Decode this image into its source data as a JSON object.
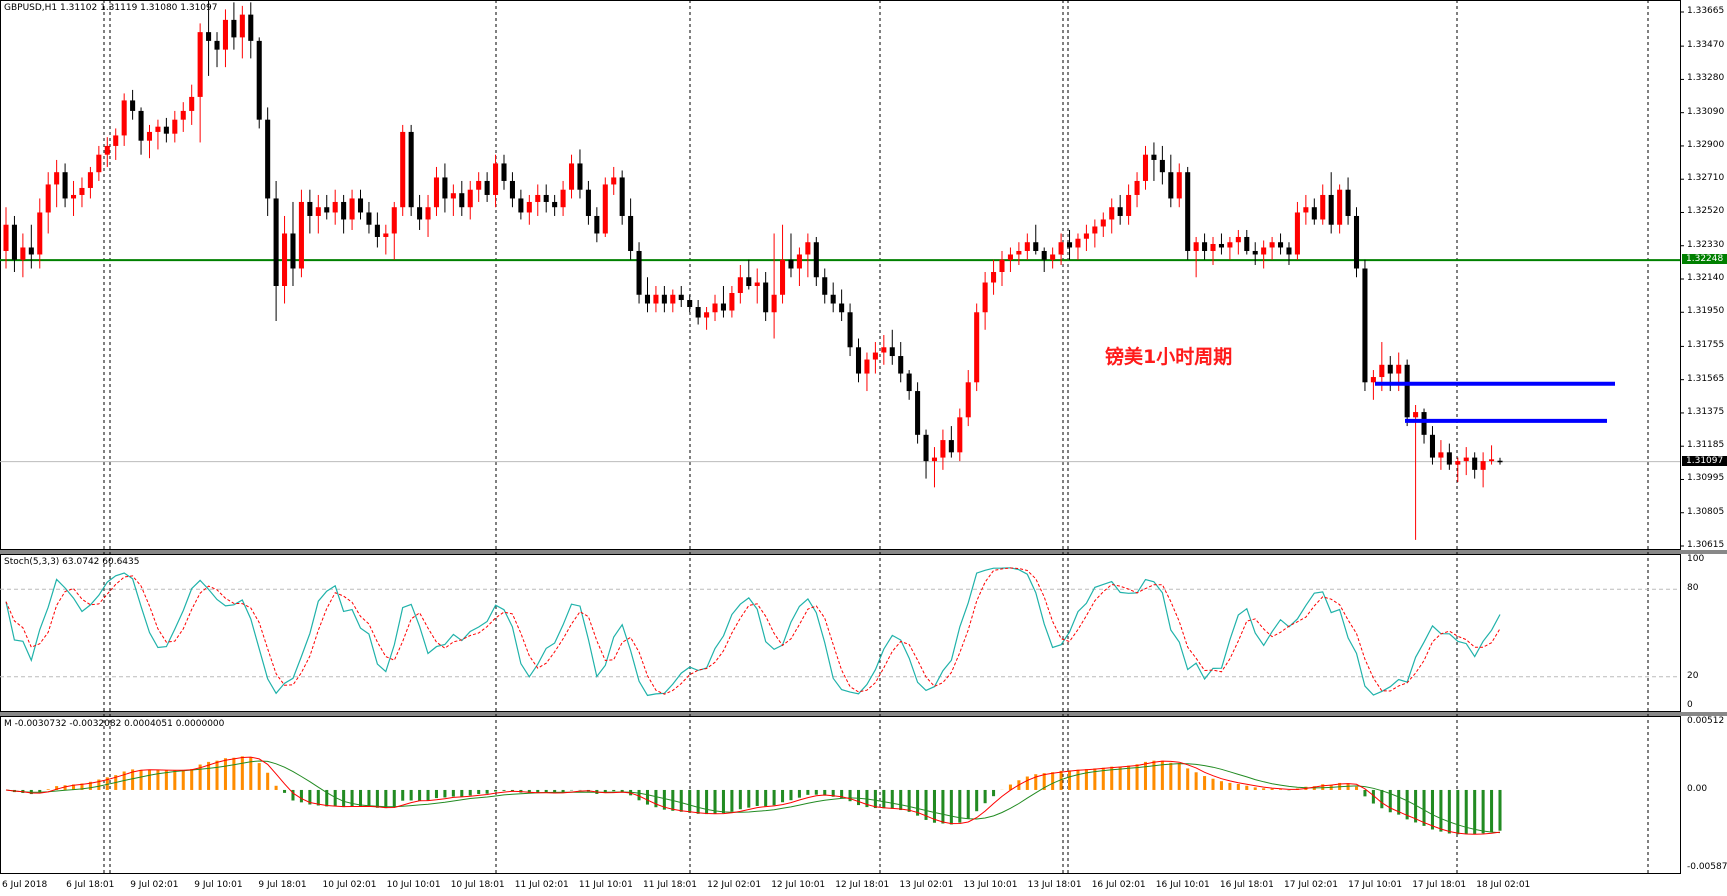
{
  "colors": {
    "bull": "#ff0000",
    "bear": "#000000",
    "level": "#008000",
    "blue_line": "#0000ff",
    "stoch_main": "#20b2aa",
    "stoch_signal": "#ff0000",
    "macd_pos": "#ff8c00",
    "macd_neg": "#228b22",
    "macd_signal_line": "#228b22",
    "macd_main_line": "#ff0000",
    "cursor_tag": "#000000",
    "level_tag": "#008000"
  },
  "header": {
    "title": "GBPUSD,H1  1.31102 1.31119 1.31080 1.31097"
  },
  "annotation": {
    "text": "镑美1小时周期"
  },
  "price_axis": {
    "ticks": [
      "1.33665",
      "1.33470",
      "1.33280",
      "1.33090",
      "1.32900",
      "1.32710",
      "1.32520",
      "1.32330",
      "1.32140",
      "1.31950",
      "1.31755",
      "1.31565",
      "1.31375",
      "1.31185",
      "1.30995",
      "1.30805",
      "1.30615"
    ],
    "level_tag": "1.32248",
    "current_tag": "1.31097"
  },
  "stoch": {
    "title": "Stoch(5,3,3) 63.0742 60.6435",
    "ticks": [
      "100",
      "80",
      "20",
      "0"
    ]
  },
  "macd": {
    "title": "M -0.0030732 -0.0032082 0.0004051 0.0000000",
    "ticks": [
      "0.00512",
      "0.00",
      "-0.005879"
    ]
  },
  "time_axis": {
    "labels": [
      "6 Jul 2018",
      "6 Jul 18:01",
      "9 Jul 02:01",
      "9 Jul 10:01",
      "9 Jul 18:01",
      "10 Jul 02:01",
      "10 Jul 10:01",
      "10 Jul 18:01",
      "11 Jul 02:01",
      "11 Jul 10:01",
      "11 Jul 18:01",
      "12 Jul 02:01",
      "12 Jul 10:01",
      "12 Jul 18:01",
      "13 Jul 02:01",
      "13 Jul 10:01",
      "13 Jul 18:01",
      "16 Jul 02:01",
      "16 Jul 10:01",
      "16 Jul 18:01",
      "17 Jul 02:01",
      "17 Jul 10:01",
      "17 Jul 18:01",
      "18 Jul 02:01"
    ]
  },
  "chart_data": {
    "type": "candlestick",
    "symbol": "GBPUSD",
    "timeframe": "H1",
    "ylim": [
      1.30615,
      1.33665
    ],
    "support_level": 1.32248,
    "current_price": 1.31097,
    "blue_levels": [
      1.31542,
      1.3133
    ],
    "candles": [
      [
        1.323,
        1.3255,
        1.322,
        1.3245
      ],
      [
        1.3245,
        1.325,
        1.3218,
        1.3225
      ],
      [
        1.3225,
        1.324,
        1.3215,
        1.3232
      ],
      [
        1.3232,
        1.3245,
        1.322,
        1.3228
      ],
      [
        1.3228,
        1.326,
        1.322,
        1.3252
      ],
      [
        1.3252,
        1.3275,
        1.324,
        1.3268
      ],
      [
        1.3268,
        1.3282,
        1.3255,
        1.3275
      ],
      [
        1.3275,
        1.328,
        1.3255,
        1.326
      ],
      [
        1.326,
        1.327,
        1.325,
        1.3262
      ],
      [
        1.3262,
        1.3272,
        1.3255,
        1.3266
      ],
      [
        1.3266,
        1.3278,
        1.326,
        1.3275
      ],
      [
        1.3275,
        1.329,
        1.327,
        1.3285
      ],
      [
        1.3285,
        1.3295,
        1.3278,
        1.329
      ],
      [
        1.329,
        1.33,
        1.3282,
        1.3296
      ],
      [
        1.3296,
        1.332,
        1.329,
        1.3316
      ],
      [
        1.3316,
        1.3322,
        1.3305,
        1.331
      ],
      [
        1.331,
        1.3312,
        1.3285,
        1.3293
      ],
      [
        1.3293,
        1.3302,
        1.3283,
        1.3298
      ],
      [
        1.3298,
        1.3305,
        1.3288,
        1.3301
      ],
      [
        1.3301,
        1.3306,
        1.3292,
        1.3297
      ],
      [
        1.3297,
        1.331,
        1.3292,
        1.3305
      ],
      [
        1.3305,
        1.3315,
        1.3298,
        1.331
      ],
      [
        1.331,
        1.3325,
        1.3302,
        1.3318
      ],
      [
        1.3318,
        1.336,
        1.3292,
        1.3355
      ],
      [
        1.3355,
        1.338,
        1.333,
        1.335
      ],
      [
        1.335,
        1.3355,
        1.3335,
        1.3345
      ],
      [
        1.3345,
        1.3368,
        1.3335,
        1.3362
      ],
      [
        1.3362,
        1.3372,
        1.3345,
        1.3352
      ],
      [
        1.3352,
        1.337,
        1.334,
        1.3365
      ],
      [
        1.3365,
        1.3372,
        1.334,
        1.335
      ],
      [
        1.335,
        1.3352,
        1.33,
        1.3305
      ],
      [
        1.3305,
        1.3312,
        1.325,
        1.326
      ],
      [
        1.326,
        1.327,
        1.319,
        1.321
      ],
      [
        1.321,
        1.325,
        1.32,
        1.324
      ],
      [
        1.324,
        1.3258,
        1.321,
        1.322
      ],
      [
        1.322,
        1.3265,
        1.3215,
        1.3258
      ],
      [
        1.3258,
        1.3265,
        1.324,
        1.325
      ],
      [
        1.325,
        1.3262,
        1.324,
        1.3255
      ],
      [
        1.3255,
        1.3262,
        1.3248,
        1.3252
      ],
      [
        1.3252,
        1.3265,
        1.3245,
        1.3258
      ],
      [
        1.3258,
        1.3262,
        1.324,
        1.3248
      ],
      [
        1.3248,
        1.3265,
        1.3242,
        1.326
      ],
      [
        1.326,
        1.3265,
        1.3248,
        1.3252
      ],
      [
        1.3252,
        1.3258,
        1.324,
        1.3245
      ],
      [
        1.3245,
        1.3252,
        1.3232,
        1.3238
      ],
      [
        1.3238,
        1.3245,
        1.3228,
        1.324
      ],
      [
        1.324,
        1.3258,
        1.3225,
        1.3255
      ],
      [
        1.3255,
        1.3302,
        1.325,
        1.3298
      ],
      [
        1.3298,
        1.3302,
        1.325,
        1.3255
      ],
      [
        1.3255,
        1.3262,
        1.3242,
        1.3248
      ],
      [
        1.3248,
        1.3262,
        1.3238,
        1.3255
      ],
      [
        1.3255,
        1.3278,
        1.325,
        1.3272
      ],
      [
        1.3272,
        1.328,
        1.3252,
        1.326
      ],
      [
        1.326,
        1.3268,
        1.325,
        1.3263
      ],
      [
        1.3263,
        1.327,
        1.325,
        1.3255
      ],
      [
        1.3255,
        1.327,
        1.3248,
        1.3265
      ],
      [
        1.3265,
        1.3275,
        1.3258,
        1.327
      ],
      [
        1.327,
        1.3275,
        1.3258,
        1.3262
      ],
      [
        1.3262,
        1.3285,
        1.3255,
        1.328
      ],
      [
        1.328,
        1.3285,
        1.3265,
        1.327
      ],
      [
        1.327,
        1.3275,
        1.3255,
        1.326
      ],
      [
        1.326,
        1.3265,
        1.3248,
        1.3252
      ],
      [
        1.3252,
        1.3262,
        1.3245,
        1.3258
      ],
      [
        1.3258,
        1.3268,
        1.325,
        1.3262
      ],
      [
        1.3262,
        1.3268,
        1.3252,
        1.3258
      ],
      [
        1.3258,
        1.3262,
        1.325,
        1.3255
      ],
      [
        1.3255,
        1.327,
        1.325,
        1.3265
      ],
      [
        1.3265,
        1.3285,
        1.326,
        1.328
      ],
      [
        1.328,
        1.3288,
        1.326,
        1.3265
      ],
      [
        1.3265,
        1.327,
        1.3245,
        1.325
      ],
      [
        1.325,
        1.3255,
        1.3235,
        1.324
      ],
      [
        1.324,
        1.3272,
        1.3238,
        1.3268
      ],
      [
        1.3268,
        1.3278,
        1.3262,
        1.3272
      ],
      [
        1.3272,
        1.3276,
        1.3245,
        1.325
      ],
      [
        1.325,
        1.326,
        1.3225,
        1.323
      ],
      [
        1.323,
        1.3235,
        1.32,
        1.3205
      ],
      [
        1.3205,
        1.3215,
        1.3195,
        1.32
      ],
      [
        1.32,
        1.321,
        1.3195,
        1.3205
      ],
      [
        1.3205,
        1.321,
        1.3195,
        1.32
      ],
      [
        1.32,
        1.3208,
        1.3195,
        1.3205
      ],
      [
        1.3205,
        1.321,
        1.3198,
        1.3202
      ],
      [
        1.3202,
        1.3205,
        1.3195,
        1.3198
      ],
      [
        1.3198,
        1.3202,
        1.3188,
        1.3192
      ],
      [
        1.3192,
        1.3198,
        1.3185,
        1.3195
      ],
      [
        1.3195,
        1.3205,
        1.319,
        1.32
      ],
      [
        1.32,
        1.321,
        1.3192,
        1.3196
      ],
      [
        1.3196,
        1.321,
        1.3192,
        1.3206
      ],
      [
        1.3206,
        1.3222,
        1.32,
        1.3215
      ],
      [
        1.3215,
        1.3225,
        1.3208,
        1.321
      ],
      [
        1.321,
        1.322,
        1.32,
        1.3212
      ],
      [
        1.3212,
        1.3218,
        1.319,
        1.3195
      ],
      [
        1.3195,
        1.324,
        1.318,
        1.3205
      ],
      [
        1.3205,
        1.3245,
        1.32,
        1.3225
      ],
      [
        1.3225,
        1.324,
        1.3215,
        1.322
      ],
      [
        1.322,
        1.3232,
        1.321,
        1.3228
      ],
      [
        1.3228,
        1.324,
        1.3215,
        1.3235
      ],
      [
        1.3235,
        1.3238,
        1.321,
        1.3215
      ],
      [
        1.3215,
        1.322,
        1.32,
        1.3205
      ],
      [
        1.3205,
        1.3212,
        1.3195,
        1.32
      ],
      [
        1.32,
        1.3208,
        1.319,
        1.3195
      ],
      [
        1.3195,
        1.32,
        1.317,
        1.3175
      ],
      [
        1.3175,
        1.318,
        1.3155,
        1.316
      ],
      [
        1.316,
        1.3172,
        1.315,
        1.3168
      ],
      [
        1.3168,
        1.3178,
        1.316,
        1.3172
      ],
      [
        1.3172,
        1.3182,
        1.3165,
        1.3175
      ],
      [
        1.3175,
        1.3185,
        1.3165,
        1.317
      ],
      [
        1.317,
        1.3178,
        1.3155,
        1.316
      ],
      [
        1.316,
        1.3162,
        1.3145,
        1.315
      ],
      [
        1.315,
        1.3155,
        1.312,
        1.3125
      ],
      [
        1.3125,
        1.3128,
        1.31,
        1.311
      ],
      [
        1.311,
        1.3118,
        1.3095,
        1.3112
      ],
      [
        1.3112,
        1.3128,
        1.3105,
        1.3122
      ],
      [
        1.3122,
        1.313,
        1.3112,
        1.3115
      ],
      [
        1.3115,
        1.314,
        1.311,
        1.3135
      ],
      [
        1.3135,
        1.3162,
        1.313,
        1.3155
      ],
      [
        1.3155,
        1.32,
        1.315,
        1.3195
      ],
      [
        1.3195,
        1.3218,
        1.3185,
        1.3212
      ],
      [
        1.3212,
        1.3225,
        1.3205,
        1.3218
      ],
      [
        1.3218,
        1.323,
        1.321,
        1.3225
      ],
      [
        1.3225,
        1.3232,
        1.3218,
        1.3228
      ],
      [
        1.3228,
        1.3235,
        1.3222,
        1.323
      ],
      [
        1.323,
        1.324,
        1.3225,
        1.3235
      ],
      [
        1.3235,
        1.3245,
        1.3228,
        1.323
      ],
      [
        1.323,
        1.3232,
        1.3218,
        1.3225
      ],
      [
        1.3225,
        1.3232,
        1.322,
        1.3228
      ],
      [
        1.3228,
        1.324,
        1.3222,
        1.3235
      ],
      [
        1.3235,
        1.3242,
        1.3225,
        1.3232
      ],
      [
        1.3232,
        1.324,
        1.3225,
        1.3237
      ],
      [
        1.3237,
        1.3245,
        1.323,
        1.324
      ],
      [
        1.324,
        1.3248,
        1.3232,
        1.3244
      ],
      [
        1.3244,
        1.3252,
        1.3238,
        1.3248
      ],
      [
        1.3248,
        1.326,
        1.324,
        1.3255
      ],
      [
        1.3255,
        1.3262,
        1.3245,
        1.325
      ],
      [
        1.325,
        1.3268,
        1.3245,
        1.3262
      ],
      [
        1.3262,
        1.3275,
        1.3255,
        1.327
      ],
      [
        1.327,
        1.329,
        1.3265,
        1.3285
      ],
      [
        1.3285,
        1.3292,
        1.327,
        1.3282
      ],
      [
        1.3282,
        1.329,
        1.3268,
        1.3275
      ],
      [
        1.3275,
        1.3285,
        1.3255,
        1.326
      ],
      [
        1.326,
        1.328,
        1.3255,
        1.3275
      ],
      [
        1.3275,
        1.3278,
        1.3225,
        1.323
      ],
      [
        1.323,
        1.3238,
        1.3215,
        1.3235
      ],
      [
        1.3235,
        1.324,
        1.3225,
        1.323
      ],
      [
        1.323,
        1.3238,
        1.3222,
        1.3234
      ],
      [
        1.3234,
        1.324,
        1.3228,
        1.3232
      ],
      [
        1.3232,
        1.3238,
        1.3225,
        1.3235
      ],
      [
        1.3235,
        1.3242,
        1.3228,
        1.3238
      ],
      [
        1.3238,
        1.3242,
        1.3228,
        1.323
      ],
      [
        1.323,
        1.3235,
        1.3222,
        1.3228
      ],
      [
        1.3228,
        1.3236,
        1.322,
        1.3232
      ],
      [
        1.3232,
        1.3238,
        1.3225,
        1.3235
      ],
      [
        1.3235,
        1.324,
        1.3228,
        1.3232
      ],
      [
        1.3232,
        1.3235,
        1.3222,
        1.3228
      ],
      [
        1.3228,
        1.3258,
        1.3225,
        1.3252
      ],
      [
        1.3252,
        1.3262,
        1.3245,
        1.3255
      ],
      [
        1.3255,
        1.326,
        1.3245,
        1.3248
      ],
      [
        1.3248,
        1.3268,
        1.3245,
        1.3262
      ],
      [
        1.3262,
        1.3275,
        1.324,
        1.3245
      ],
      [
        1.3245,
        1.3268,
        1.324,
        1.3265
      ],
      [
        1.3265,
        1.3272,
        1.3245,
        1.325
      ],
      [
        1.325,
        1.3255,
        1.3215,
        1.322
      ],
      [
        1.322,
        1.3225,
        1.315,
        1.3155
      ],
      [
        1.3155,
        1.3162,
        1.3145,
        1.3158
      ],
      [
        1.3158,
        1.3178,
        1.315,
        1.3165
      ],
      [
        1.3165,
        1.317,
        1.315,
        1.316
      ],
      [
        1.316,
        1.3172,
        1.315,
        1.3165
      ],
      [
        1.3165,
        1.3168,
        1.313,
        1.3135
      ],
      [
        1.3135,
        1.3142,
        1.3065,
        1.3138
      ],
      [
        1.3138,
        1.314,
        1.312,
        1.3125
      ],
      [
        1.3125,
        1.313,
        1.3108,
        1.3112
      ],
      [
        1.3112,
        1.3122,
        1.3105,
        1.3115
      ],
      [
        1.3115,
        1.312,
        1.3105,
        1.3108
      ],
      [
        1.3108,
        1.3112,
        1.3098,
        1.311
      ],
      [
        1.311,
        1.3118,
        1.3102,
        1.3112
      ],
      [
        1.3112,
        1.3115,
        1.31,
        1.3105
      ],
      [
        1.3105,
        1.3115,
        1.3095,
        1.311
      ],
      [
        1.311,
        1.3119,
        1.3108,
        1.3111
      ],
      [
        1.31102,
        1.31119,
        1.3108,
        1.31097
      ]
    ]
  }
}
